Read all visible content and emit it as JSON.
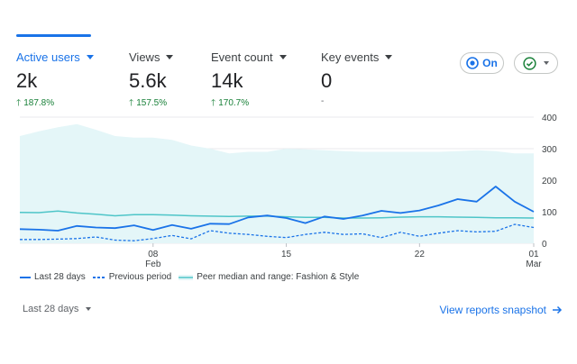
{
  "metrics": [
    {
      "label": "Active users",
      "value": "2k",
      "change": "187.8%",
      "trend": "up",
      "active": true
    },
    {
      "label": "Views",
      "value": "5.6k",
      "change": "157.5%",
      "trend": "up",
      "active": false
    },
    {
      "label": "Event count",
      "value": "14k",
      "change": "170.7%",
      "trend": "up",
      "active": false
    },
    {
      "label": "Key events",
      "value": "0",
      "change": "-",
      "trend": "none",
      "active": false
    }
  ],
  "controls": {
    "on_label": "On",
    "accent": "#1a73e8",
    "check_color": "#188038"
  },
  "chart_data": {
    "type": "line",
    "x_tick_labels": [
      [
        "08",
        "Feb"
      ],
      [
        "15",
        ""
      ],
      [
        "22",
        ""
      ],
      [
        "01",
        "Mar"
      ]
    ],
    "ylim": [
      0,
      400
    ],
    "y_ticks": [
      0,
      100,
      200,
      300,
      400
    ],
    "n_points": 28,
    "tick_indices": [
      7,
      14,
      21,
      27
    ],
    "series": [
      {
        "name": "Last 28 days",
        "style": "solid",
        "color": "#1a73e8",
        "values": [
          45,
          43,
          40,
          55,
          50,
          48,
          57,
          42,
          58,
          46,
          62,
          61,
          82,
          88,
          80,
          64,
          85,
          77,
          88,
          103,
          96,
          104,
          120,
          140,
          132,
          180,
          132,
          100
        ]
      },
      {
        "name": "Previous period",
        "style": "dashed",
        "color": "#1a73e8",
        "values": [
          12,
          12,
          13,
          15,
          20,
          10,
          8,
          15,
          25,
          14,
          40,
          32,
          28,
          22,
          18,
          28,
          35,
          28,
          30,
          18,
          35,
          22,
          32,
          40,
          36,
          38,
          60,
          50
        ]
      }
    ],
    "band": {
      "name": "Peer median and range: Fashion & Style",
      "color": "#4ec5c8",
      "fill": "#e4f6f8",
      "upper": [
        340,
        355,
        368,
        378,
        360,
        340,
        335,
        335,
        328,
        310,
        300,
        285,
        290,
        290,
        300,
        298,
        295,
        292,
        290,
        290,
        290,
        290,
        290,
        292,
        295,
        292,
        285,
        285
      ],
      "median": [
        98,
        97,
        102,
        96,
        92,
        87,
        91,
        91,
        89,
        87,
        86,
        85,
        86,
        86,
        84,
        82,
        82,
        80,
        80,
        81,
        83,
        84,
        84,
        83,
        82,
        81,
        81,
        80
      ],
      "lower": [
        0,
        0,
        0,
        0,
        0,
        0,
        0,
        0,
        0,
        0,
        0,
        0,
        0,
        0,
        0,
        0,
        0,
        0,
        0,
        0,
        0,
        0,
        0,
        0,
        0,
        0,
        0,
        0
      ]
    }
  },
  "footer": {
    "range_label": "Last 28 days",
    "snapshot_link": "View reports snapshot"
  }
}
